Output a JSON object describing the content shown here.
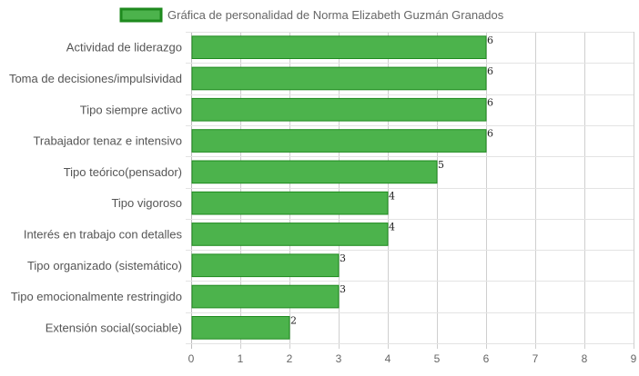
{
  "chart_data": {
    "type": "bar",
    "orientation": "horizontal",
    "categories": [
      "Actividad de liderazgo",
      "Toma de decisiones/impulsividad",
      "Tipo siempre activo",
      "Trabajador tenaz e intensivo",
      "Tipo teórico(pensador)",
      "Tipo vigoroso",
      "Interés en trabajo con detalles",
      "Tipo organizado (sistemático)",
      "Tipo emocionalmente restringido",
      "Extensión social(sociable)"
    ],
    "series": [
      {
        "name": "Gráfica de personalidad de Norma Elizabeth Guzmán Granados",
        "values": [
          6,
          6,
          6,
          6,
          5,
          4,
          4,
          3,
          3,
          2
        ],
        "color": "#4cb34c",
        "border_color": "#1e8a1e"
      }
    ],
    "xlim": [
      0,
      9
    ],
    "x_ticks": [
      "0",
      "1",
      "2",
      "3",
      "4",
      "5",
      "6",
      "7",
      "8",
      "9"
    ],
    "legend_position": "top",
    "grid": true,
    "data_labels": true
  }
}
